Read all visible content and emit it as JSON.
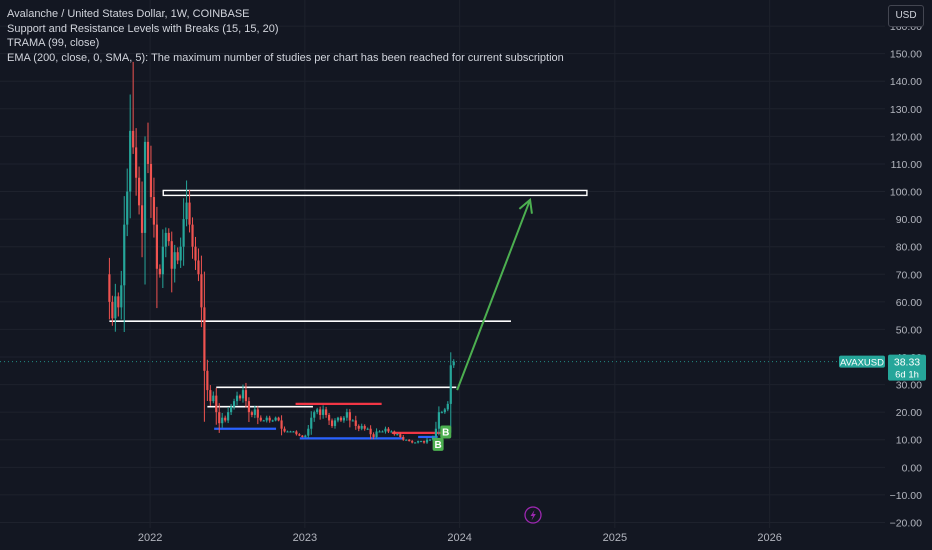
{
  "legend": {
    "title": "Avalanche / United States Dollar, 1W, COINBASE",
    "study1": " Support and Resistance Levels with Breaks (15, 15, 20)",
    "study2": "TRAMA (99, close)",
    "study3": "EMA (200, close, 0, SMA, 5): The maximum number of studies per chart has been reached for current subscription"
  },
  "currency_button": "USD",
  "colors": {
    "background": "#131722",
    "up": "#26a69a",
    "down": "#ef5350",
    "arrow": "#4caf50",
    "support": "#2962ff",
    "resistance": "#f23645",
    "price_label": "#26a69a"
  },
  "chart_data": {
    "type": "candlestick",
    "symbol": "AVAXUSD",
    "timeframe": "1W",
    "ylim": [
      -22,
      168
    ],
    "y_ticks": [
      -20,
      -10,
      0,
      10,
      20,
      30,
      40,
      50,
      60,
      70,
      80,
      90,
      100,
      110,
      120,
      130,
      140,
      150,
      160
    ],
    "y_tick_labels": [
      "−20.00",
      "−10.00",
      "0.00",
      "10.00",
      "20.00",
      "30.00",
      "40.00",
      "50.00",
      "60.00",
      "70.00",
      "80.00",
      "90.00",
      "100.00",
      "110.00",
      "120.00",
      "130.00",
      "140.00",
      "150.00",
      "160.00"
    ],
    "x_range": [
      "2021-01-12",
      "2026-09-30"
    ],
    "x_ticks": [
      {
        "date": "2022-01-01",
        "label": "2022"
      },
      {
        "date": "2023-01-01",
        "label": "2023"
      },
      {
        "date": "2024-01-01",
        "label": "2024"
      },
      {
        "date": "2025-01-01",
        "label": "2025"
      },
      {
        "date": "2026-01-01",
        "label": "2026"
      }
    ],
    "last_price": 38.33,
    "last_price_label": "38.33",
    "countdown": "6d 1h",
    "close_path": [
      [
        "2021-09-20",
        70
      ],
      [
        "2021-09-27",
        60
      ],
      [
        "2021-10-04",
        54
      ],
      [
        "2021-10-11",
        62
      ],
      [
        "2021-10-18",
        58
      ],
      [
        "2021-10-25",
        66
      ],
      [
        "2021-11-01",
        88
      ],
      [
        "2021-11-08",
        100
      ],
      [
        "2021-11-15",
        122
      ],
      [
        "2021-11-22",
        116
      ],
      [
        "2021-11-29",
        105
      ],
      [
        "2021-12-06",
        95
      ],
      [
        "2021-12-13",
        85
      ],
      [
        "2021-12-20",
        118
      ],
      [
        "2021-12-27",
        110
      ],
      [
        "2022-01-03",
        98
      ],
      [
        "2022-01-10",
        88
      ],
      [
        "2022-01-17",
        72
      ],
      [
        "2022-01-24",
        70
      ],
      [
        "2022-01-31",
        80
      ],
      [
        "2022-02-07",
        85
      ],
      [
        "2022-02-14",
        82
      ],
      [
        "2022-02-21",
        72
      ],
      [
        "2022-02-28",
        78
      ],
      [
        "2022-03-07",
        75
      ],
      [
        "2022-03-14",
        80
      ],
      [
        "2022-03-21",
        90
      ],
      [
        "2022-03-28",
        96
      ],
      [
        "2022-04-04",
        88
      ],
      [
        "2022-04-11",
        80
      ],
      [
        "2022-04-18",
        75
      ],
      [
        "2022-04-25",
        70
      ],
      [
        "2022-05-02",
        58
      ],
      [
        "2022-05-09",
        35
      ],
      [
        "2022-05-16",
        28
      ],
      [
        "2022-05-23",
        24
      ],
      [
        "2022-05-30",
        26
      ],
      [
        "2022-06-06",
        20
      ],
      [
        "2022-06-13",
        16
      ],
      [
        "2022-06-20",
        18
      ],
      [
        "2022-06-27",
        17
      ],
      [
        "2022-07-04",
        20
      ],
      [
        "2022-07-11",
        22
      ],
      [
        "2022-07-18",
        24
      ],
      [
        "2022-07-25",
        26
      ],
      [
        "2022-08-01",
        25
      ],
      [
        "2022-08-08",
        28
      ],
      [
        "2022-08-15",
        24
      ],
      [
        "2022-08-22",
        20
      ],
      [
        "2022-08-29",
        19
      ],
      [
        "2022-09-05",
        21
      ],
      [
        "2022-09-12",
        18
      ],
      [
        "2022-09-19",
        17
      ],
      [
        "2022-09-26",
        17
      ],
      [
        "2022-10-03",
        18
      ],
      [
        "2022-10-10",
        17
      ],
      [
        "2022-10-17",
        17
      ],
      [
        "2022-10-24",
        18
      ],
      [
        "2022-10-31",
        17
      ],
      [
        "2022-11-07",
        14
      ],
      [
        "2022-11-14",
        13
      ],
      [
        "2022-11-21",
        13
      ],
      [
        "2022-11-28",
        13
      ],
      [
        "2022-12-05",
        13
      ],
      [
        "2022-12-12",
        12
      ],
      [
        "2022-12-19",
        11.5
      ],
      [
        "2022-12-26",
        11
      ],
      [
        "2023-01-02",
        11.5
      ],
      [
        "2023-01-09",
        14
      ],
      [
        "2023-01-16",
        18
      ],
      [
        "2023-01-23",
        20
      ],
      [
        "2023-01-30",
        21
      ],
      [
        "2023-02-06",
        19
      ],
      [
        "2023-02-13",
        21
      ],
      [
        "2023-02-20",
        19
      ],
      [
        "2023-02-27",
        17
      ],
      [
        "2023-03-06",
        15
      ],
      [
        "2023-03-13",
        17
      ],
      [
        "2023-03-20",
        18
      ],
      [
        "2023-03-27",
        17
      ],
      [
        "2023-04-03",
        18
      ],
      [
        "2023-04-10",
        20
      ],
      [
        "2023-04-17",
        17
      ],
      [
        "2023-04-24",
        17
      ],
      [
        "2023-05-01",
        15
      ],
      [
        "2023-05-08",
        14
      ],
      [
        "2023-05-15",
        15
      ],
      [
        "2023-05-22",
        14
      ],
      [
        "2023-05-29",
        14
      ],
      [
        "2023-06-05",
        12
      ],
      [
        "2023-06-12",
        11
      ],
      [
        "2023-06-19",
        13
      ],
      [
        "2023-06-26",
        13
      ],
      [
        "2023-07-03",
        13
      ],
      [
        "2023-07-10",
        14
      ],
      [
        "2023-07-17",
        13
      ],
      [
        "2023-07-24",
        13
      ],
      [
        "2023-07-31",
        12
      ],
      [
        "2023-08-07",
        12
      ],
      [
        "2023-08-14",
        11
      ],
      [
        "2023-08-21",
        10
      ],
      [
        "2023-08-28",
        10
      ],
      [
        "2023-09-04",
        9.5
      ],
      [
        "2023-09-11",
        9
      ],
      [
        "2023-09-18",
        9
      ],
      [
        "2023-09-25",
        9.5
      ],
      [
        "2023-10-02",
        9.5
      ],
      [
        "2023-10-09",
        9
      ],
      [
        "2023-10-16",
        10
      ],
      [
        "2023-10-23",
        10
      ],
      [
        "2023-10-30",
        11
      ],
      [
        "2023-11-06",
        14
      ],
      [
        "2023-11-13",
        20
      ],
      [
        "2023-11-20",
        20
      ],
      [
        "2023-11-27",
        21
      ],
      [
        "2023-12-04",
        23
      ],
      [
        "2023-12-11",
        37
      ],
      [
        "2023-12-18",
        38.33
      ]
    ],
    "spikes": [
      {
        "date": "2021-11-22",
        "high": 147
      },
      {
        "date": "2021-12-20",
        "high": 120
      },
      {
        "date": "2022-03-28",
        "high": 104
      },
      {
        "date": "2022-08-08",
        "high": 30
      }
    ],
    "levels_white": [
      {
        "y": 53,
        "from": "2021-09-27",
        "to": "2024-05-01"
      },
      {
        "y": 29,
        "from": "2022-06-06",
        "to": "2023-12-24"
      },
      {
        "y": 22,
        "from": "2022-05-16",
        "to": "2023-01-20"
      }
    ],
    "zone_box": {
      "y1": 98.6,
      "y2": 100.4,
      "from": "2022-02-01",
      "to": "2024-10-27"
    },
    "support_lines": [
      {
        "y": 14,
        "from": "2022-06-01",
        "to": "2022-10-25"
      },
      {
        "y": 10.5,
        "from": "2022-12-20",
        "to": "2023-08-20"
      },
      {
        "y": 11,
        "from": "2023-09-25",
        "to": "2023-11-10"
      }
    ],
    "resistance_lines": [
      {
        "y": 23,
        "from": "2022-12-10",
        "to": "2023-07-01"
      },
      {
        "y": 12.5,
        "from": "2023-07-25",
        "to": "2023-11-20"
      }
    ],
    "arrow": {
      "from": {
        "date": "2023-12-26",
        "y": 28
      },
      "to": {
        "date": "2024-06-15",
        "y": 97
      }
    },
    "break_labels": [
      {
        "date": "2023-11-28",
        "y": 13,
        "text": "B"
      },
      {
        "date": "2023-11-10",
        "y": 8.5,
        "text": "B"
      }
    ]
  }
}
